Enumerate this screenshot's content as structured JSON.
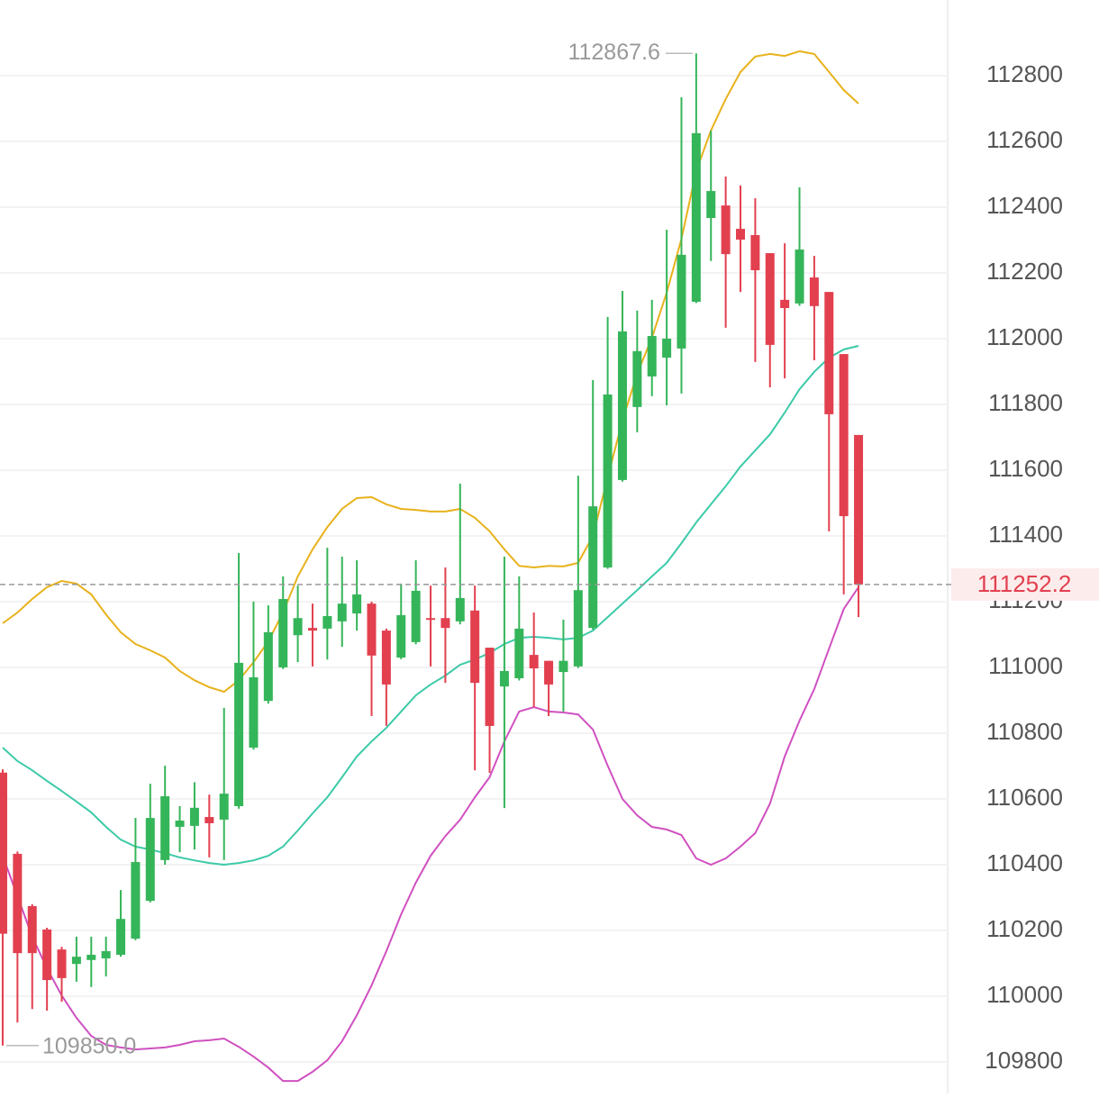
{
  "chart_data": {
    "type": "candlestick",
    "open": [
      110680,
      110433,
      110274,
      110203,
      110142,
      110098,
      110110,
      110115,
      110126,
      110175,
      110290,
      110414,
      110515,
      110518,
      110545,
      110537,
      110578,
      110756,
      110898,
      111000,
      111098,
      111120,
      111118,
      111140,
      111164,
      111194,
      111112,
      111030,
      111077,
      111150,
      111150,
      111140,
      111173,
      111060,
      110942,
      110967,
      111038,
      111020,
      110986,
      111003,
      111120,
      111304,
      111570,
      111792,
      111885,
      111942,
      111970,
      112112,
      112367,
      112405,
      112334,
      112315,
      112260,
      112118,
      112107,
      112186,
      112142,
      111953,
      111707
    ],
    "high": [
      110690,
      110440,
      110280,
      110208,
      110150,
      110181,
      110181,
      110181,
      110323,
      110542,
      110646,
      110701,
      110578,
      110651,
      110613,
      110877,
      111348,
      111200,
      111189,
      111277,
      111249,
      111194,
      111364,
      111337,
      111326,
      111200,
      111118,
      111255,
      111326,
      111249,
      111304,
      111559,
      111249,
      111060,
      111337,
      111277,
      111167,
      111020,
      111145,
      111583,
      111874,
      112066,
      112145,
      112085,
      112118,
      112331,
      112734,
      112867.6,
      112633,
      112493,
      112466,
      112427,
      112260,
      112290,
      112460,
      112252,
      112142,
      111953,
      111707
    ],
    "low": [
      109850,
      109920,
      109961,
      109956,
      109983,
      110044,
      110028,
      110060,
      110120,
      110170,
      110285,
      110400,
      110438,
      110446,
      110422,
      110414,
      110570,
      110750,
      110890,
      110995,
      111016,
      111003,
      111024,
      111063,
      111112,
      110852,
      110822,
      111025,
      111070,
      111003,
      110953,
      111131,
      110687,
      110679,
      110572,
      110960,
      110879,
      110852,
      110866,
      110998,
      111115,
      111300,
      111565,
      111715,
      111825,
      111797,
      111833,
      112108,
      112236,
      112033,
      112142,
      111929,
      111852,
      111879,
      112100,
      111934,
      111414,
      111222,
      111153
    ],
    "close": [
      110190,
      110131,
      110131,
      110049,
      110055,
      110120,
      110126,
      110137,
      110235,
      110408,
      110542,
      110608,
      110534,
      110573,
      110526,
      110616,
      111014,
      110970,
      111107,
      111208,
      111150,
      111112,
      111156,
      111194,
      111222,
      111036,
      110948,
      111159,
      111233,
      111145,
      111120,
      111211,
      110953,
      110822,
      110989,
      111118,
      110997,
      110948,
      111020,
      111235,
      111490,
      111830,
      112022,
      111962,
      112008,
      112000,
      112255,
      112625,
      112449,
      112257,
      112301,
      112208,
      111981,
      112093,
      112271,
      112099,
      111770,
      111460,
      111252.2
    ],
    "up_color": "#35b559",
    "down_color": "#e2404f",
    "lines": [
      {
        "color": "#e8b21c",
        "values": [
          111134,
          111167,
          111208,
          111244,
          111263,
          111255,
          111222,
          111161,
          111107,
          111071,
          111052,
          111030,
          110989,
          110961,
          110940,
          110926,
          110961,
          111016,
          111079,
          111167,
          111277,
          111359,
          111427,
          111482,
          111515,
          111518,
          111496,
          111482,
          111479,
          111474,
          111474,
          111482,
          111455,
          111414,
          111359,
          111309,
          111304,
          111309,
          111307,
          111318,
          111400,
          111578,
          111751,
          111893,
          112003,
          112140,
          112304,
          112510,
          112633,
          112729,
          112811,
          112858,
          112866,
          112860,
          112874,
          112866,
          112811,
          112756,
          112715
        ]
      },
      {
        "color": "#3ccaa8",
        "values": [
          110756,
          110715,
          110687,
          110655,
          110624,
          110592,
          110559,
          110515,
          110476,
          110455,
          110446,
          110435,
          110422,
          110413,
          110405,
          110400,
          110405,
          110413,
          110427,
          110455,
          110504,
          110556,
          110605,
          110666,
          110729,
          110775,
          110816,
          110866,
          110915,
          110948,
          110975,
          111008,
          111024,
          111044,
          111071,
          111090,
          111093,
          111090,
          111085,
          111090,
          111112,
          111153,
          111194,
          111235,
          111277,
          111318,
          111378,
          111441,
          111496,
          111551,
          111611,
          111660,
          111709,
          111775,
          111846,
          111899,
          111942,
          111967,
          111978
        ]
      },
      {
        "color": "#d050c0",
        "values": [
          110427,
          110304,
          110181,
          110085,
          110002,
          109934,
          109879,
          109852,
          109844,
          109838,
          109841,
          109844,
          109852,
          109863,
          109866,
          109871,
          109846,
          109816,
          109783,
          109742,
          109742,
          109770,
          109805,
          109863,
          109942,
          110033,
          110137,
          110249,
          110345,
          110427,
          110487,
          110537,
          110605,
          110666,
          110775,
          110866,
          110879,
          110866,
          110863,
          110857,
          110811,
          110701,
          110600,
          110550,
          110515,
          110507,
          110490,
          110419,
          110400,
          110419,
          110455,
          110496,
          110586,
          110729,
          110838,
          110934,
          111057,
          111178,
          111244
        ]
      }
    ],
    "ylim": [
      109704,
      113030
    ],
    "yticks": [
      109800,
      110000,
      110200,
      110400,
      110600,
      110800,
      111000,
      111200,
      111400,
      111600,
      111800,
      112000,
      112200,
      112400,
      112600,
      112800
    ],
    "grid": true,
    "min_label": "109850.0"
  }
}
